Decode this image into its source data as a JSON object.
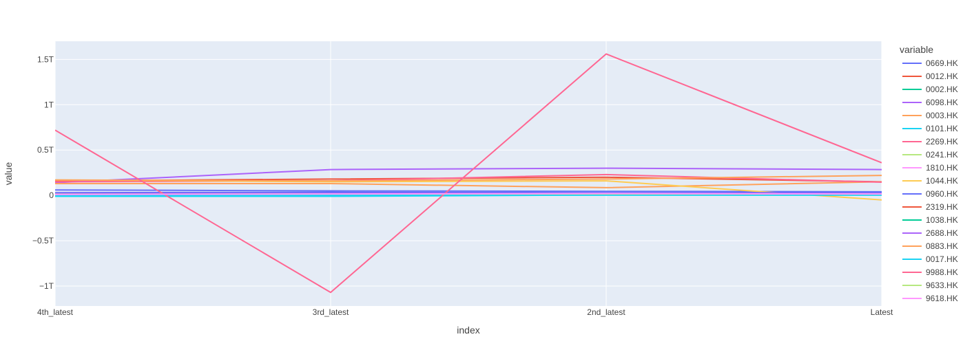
{
  "chart_data": {
    "type": "line",
    "xlabel": "index",
    "ylabel": "value",
    "x": [
      "4th_latest",
      "3rd_latest",
      "2nd_latest",
      "Latest"
    ],
    "ylim": [
      -1220000000000.0,
      1700000000000.0
    ],
    "y_ticks": [
      {
        "value": -1000000000000.0,
        "label": "−1T"
      },
      {
        "value": -500000000000.0,
        "label": "−0.5T"
      },
      {
        "value": 0,
        "label": "0"
      },
      {
        "value": 500000000000.0,
        "label": "0.5T"
      },
      {
        "value": 1000000000000.0,
        "label": "1T"
      },
      {
        "value": 1500000000000.0,
        "label": "1.5T"
      }
    ],
    "grid": true,
    "legend_title": "variable",
    "legend_position": "right",
    "series": [
      {
        "name": "0669.HK",
        "color": "#636efa",
        "values": [
          60000000000.0,
          50000000000.0,
          45000000000.0,
          40000000000.0
        ]
      },
      {
        "name": "0012.HK",
        "color": "#EF553B",
        "values": [
          160000000000.0,
          180000000000.0,
          200000000000.0,
          150000000000.0
        ]
      },
      {
        "name": "0002.HK",
        "color": "#00cc96",
        "values": [
          15000000000.0,
          15000000000.0,
          10000000000.0,
          10000000000.0
        ]
      },
      {
        "name": "6098.HK",
        "color": "#ab63fa",
        "values": [
          140000000000.0,
          285000000000.0,
          300000000000.0,
          285000000000.0
        ]
      },
      {
        "name": "0003.HK",
        "color": "#FFA15A",
        "values": [
          130000000000.0,
          130000000000.0,
          85000000000.0,
          150000000000.0
        ]
      },
      {
        "name": "0101.HK",
        "color": "#19d3f3",
        "values": [
          -10000000000.0,
          -10000000000.0,
          5000000000.0,
          5000000000.0
        ]
      },
      {
        "name": "2269.HK",
        "color": "#FF6692",
        "values": [
          150000000000.0,
          160000000000.0,
          230000000000.0,
          145000000000.0
        ]
      },
      {
        "name": "0241.HK",
        "color": "#B6E880",
        "values": [
          5000000000.0,
          5000000000.0,
          5000000000.0,
          5000000000.0
        ]
      },
      {
        "name": "1810.HK",
        "color": "#FF97FF",
        "values": [
          20000000000.0,
          25000000000.0,
          25000000000.0,
          20000000000.0
        ]
      },
      {
        "name": "1044.HK",
        "color": "#FECB52",
        "values": [
          170000000000.0,
          150000000000.0,
          160000000000.0,
          -50000000000.0
        ]
      },
      {
        "name": "0960.HK",
        "color": "#636efa",
        "values": [
          30000000000.0,
          35000000000.0,
          30000000000.0,
          30000000000.0
        ]
      },
      {
        "name": "2319.HK",
        "color": "#EF553B",
        "values": [
          10000000000.0,
          10000000000.0,
          10000000000.0,
          10000000000.0
        ]
      },
      {
        "name": "1038.HK",
        "color": "#00cc96",
        "values": [
          8000000000.0,
          8000000000.0,
          8000000000.0,
          8000000000.0
        ]
      },
      {
        "name": "2688.HK",
        "color": "#ab63fa",
        "values": [
          18000000000.0,
          20000000000.0,
          22000000000.0,
          20000000000.0
        ]
      },
      {
        "name": "0883.HK",
        "color": "#FFA15A",
        "values": [
          170000000000.0,
          160000000000.0,
          180000000000.0,
          220000000000.0
        ]
      },
      {
        "name": "0017.HK",
        "color": "#19d3f3",
        "values": [
          2000000000.0,
          2000000000.0,
          2000000000.0,
          2000000000.0
        ]
      },
      {
        "name": "9988.HK",
        "color": "#FF6692",
        "values": [
          720000000000.0,
          -1070000000000.0,
          1560000000000.0,
          360000000000.0
        ]
      },
      {
        "name": "9633.HK",
        "color": "#B6E880",
        "values": [
          12000000000.0,
          15000000000.0,
          15000000000.0,
          15000000000.0
        ]
      },
      {
        "name": "9618.HK",
        "color": "#FF97FF",
        "values": [
          10000000000.0,
          15000000000.0,
          20000000000.0,
          15000000000.0
        ]
      }
    ]
  }
}
